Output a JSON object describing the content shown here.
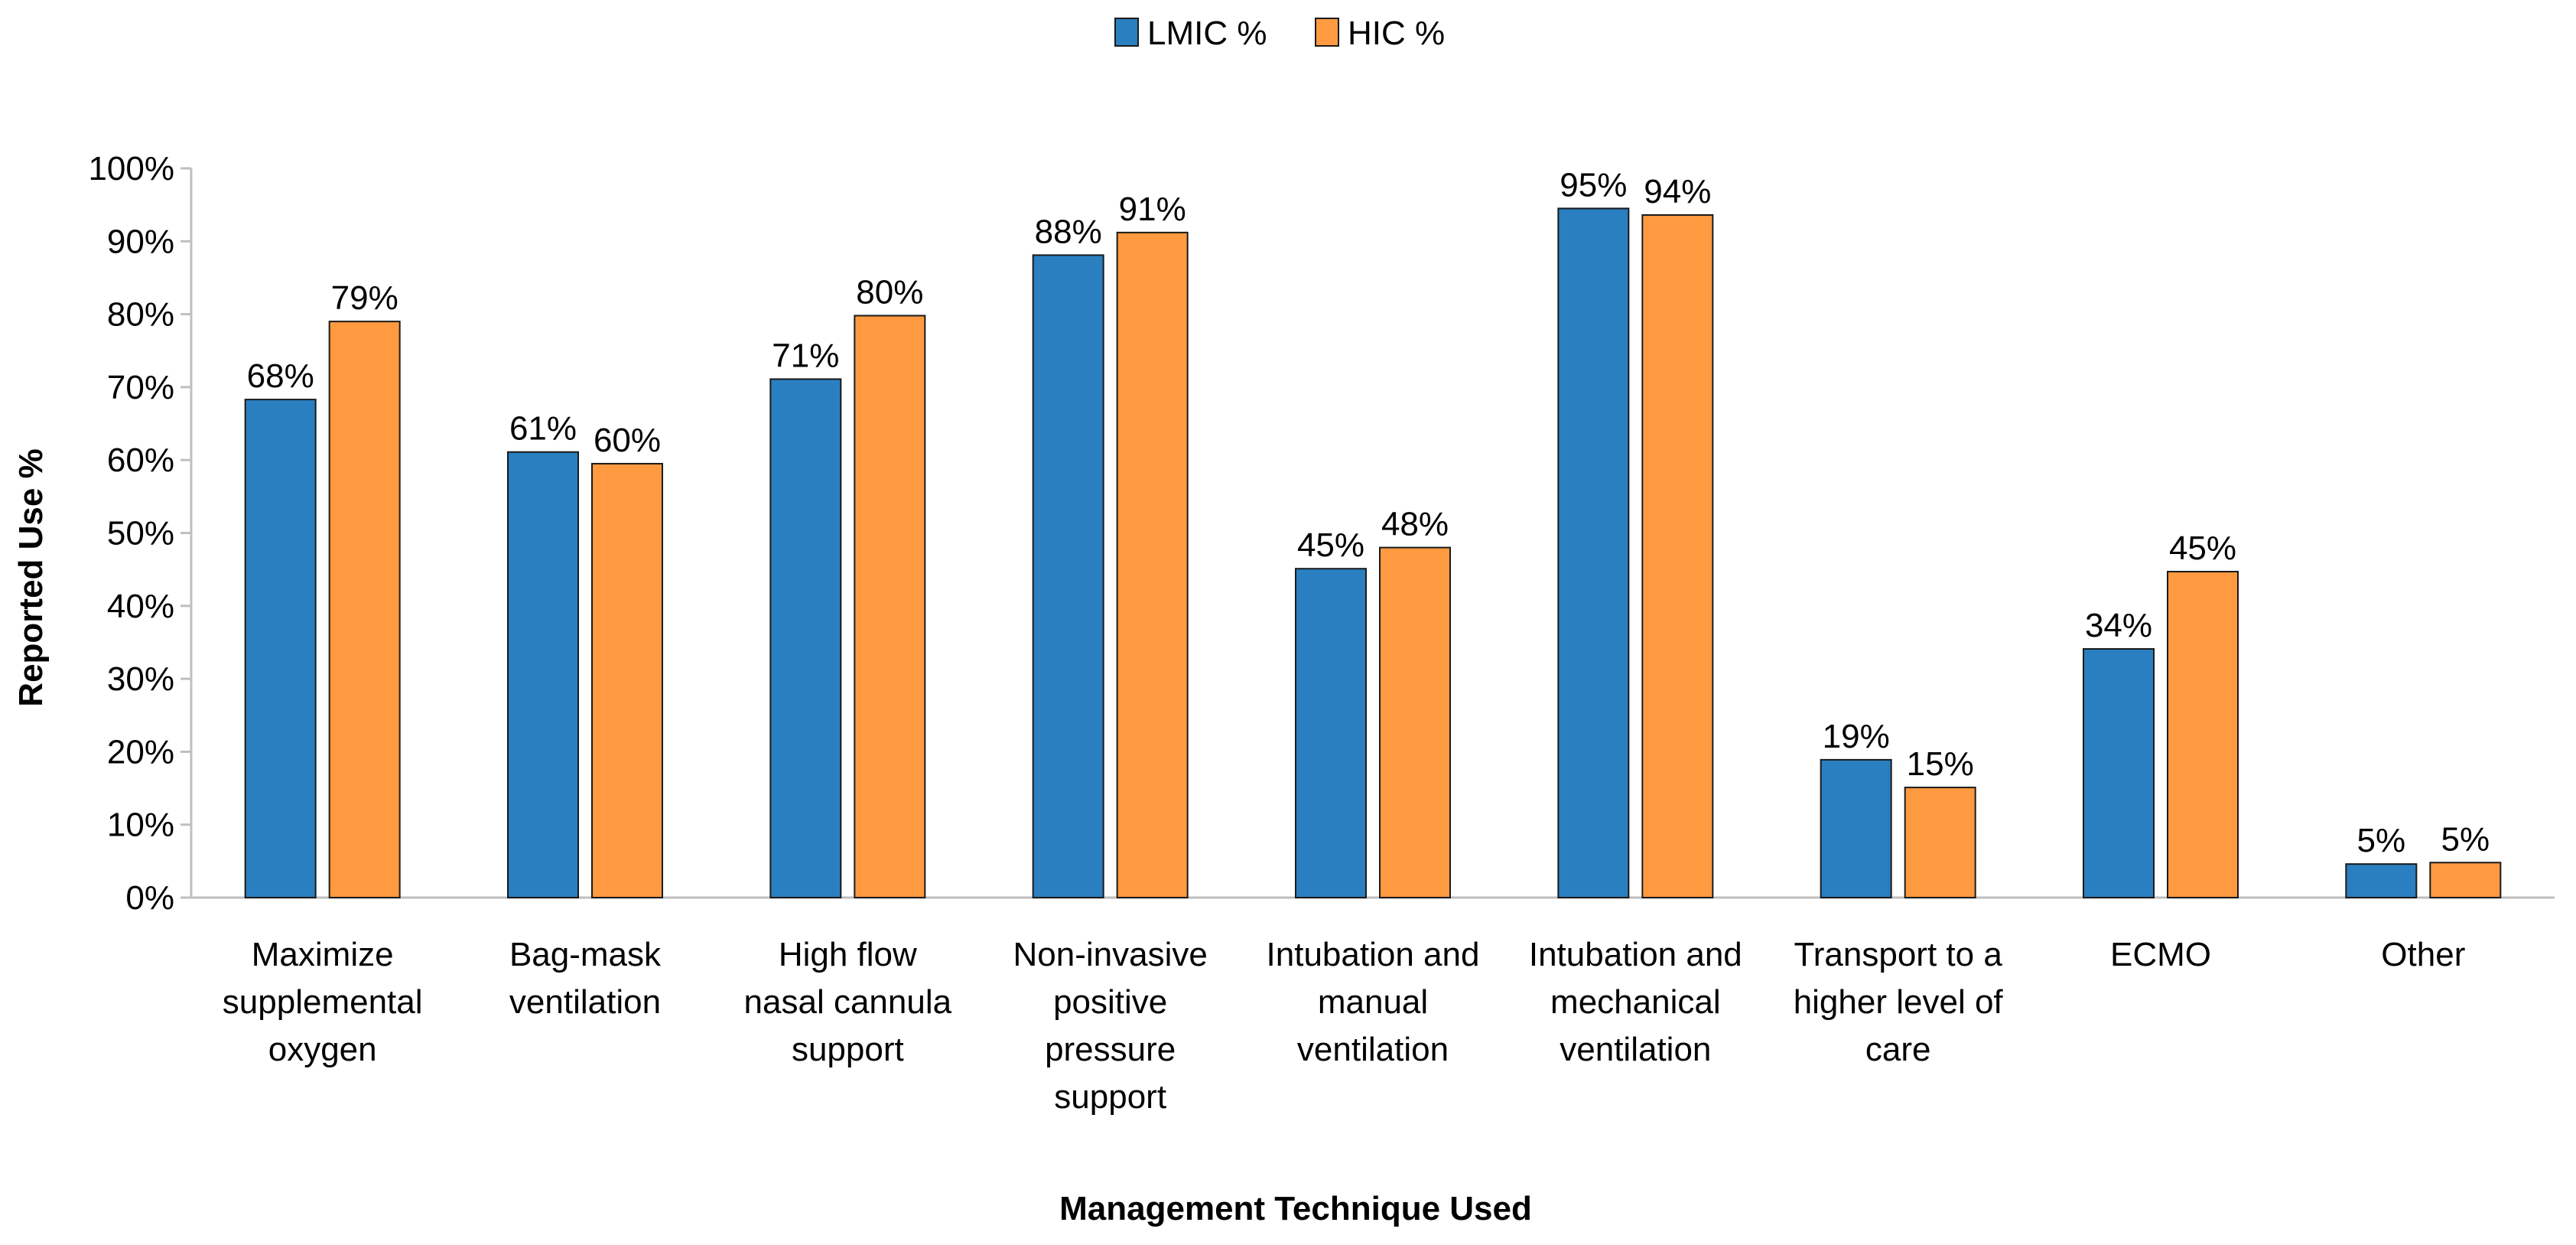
{
  "chart_data": {
    "type": "bar",
    "title": "",
    "xlabel": "Management Technique Used",
    "ylabel": "Reported Use %",
    "ylim": [
      0,
      100
    ],
    "yticks": [
      "0%",
      "10%",
      "20%",
      "30%",
      "40%",
      "50%",
      "60%",
      "70%",
      "80%",
      "90%",
      "100%"
    ],
    "legend_position": "top-center",
    "grid": false,
    "categories": [
      [
        "Maximize",
        "supplemental",
        "oxygen"
      ],
      [
        "Bag-mask",
        "ventilation"
      ],
      [
        "High flow",
        "nasal cannula",
        "support"
      ],
      [
        "Non-invasive",
        "positive",
        "pressure",
        "support"
      ],
      [
        "Intubation and",
        "manual",
        "ventilation"
      ],
      [
        "Intubation and",
        "mechanical",
        "ventilation"
      ],
      [
        "Transport to a",
        "higher level of",
        "care"
      ],
      [
        "ECMO"
      ],
      [
        "Other"
      ]
    ],
    "series": [
      {
        "name": "LMIC %",
        "color": "#2A7FC0",
        "values": [
          68.3,
          61.1,
          71.1,
          88.1,
          45.1,
          94.5,
          18.9,
          34.1,
          4.6
        ],
        "labels": [
          "68%",
          "61%",
          "71%",
          "88%",
          "45%",
          "95%",
          "19%",
          "34%",
          "5%"
        ]
      },
      {
        "name": "HIC %",
        "color": "#FF9A40",
        "values": [
          79.0,
          59.5,
          79.8,
          91.2,
          48.0,
          93.6,
          15.1,
          44.7,
          4.8
        ],
        "labels": [
          "79%",
          "60%",
          "80%",
          "91%",
          "48%",
          "94%",
          "15%",
          "45%",
          "5%"
        ]
      }
    ]
  }
}
